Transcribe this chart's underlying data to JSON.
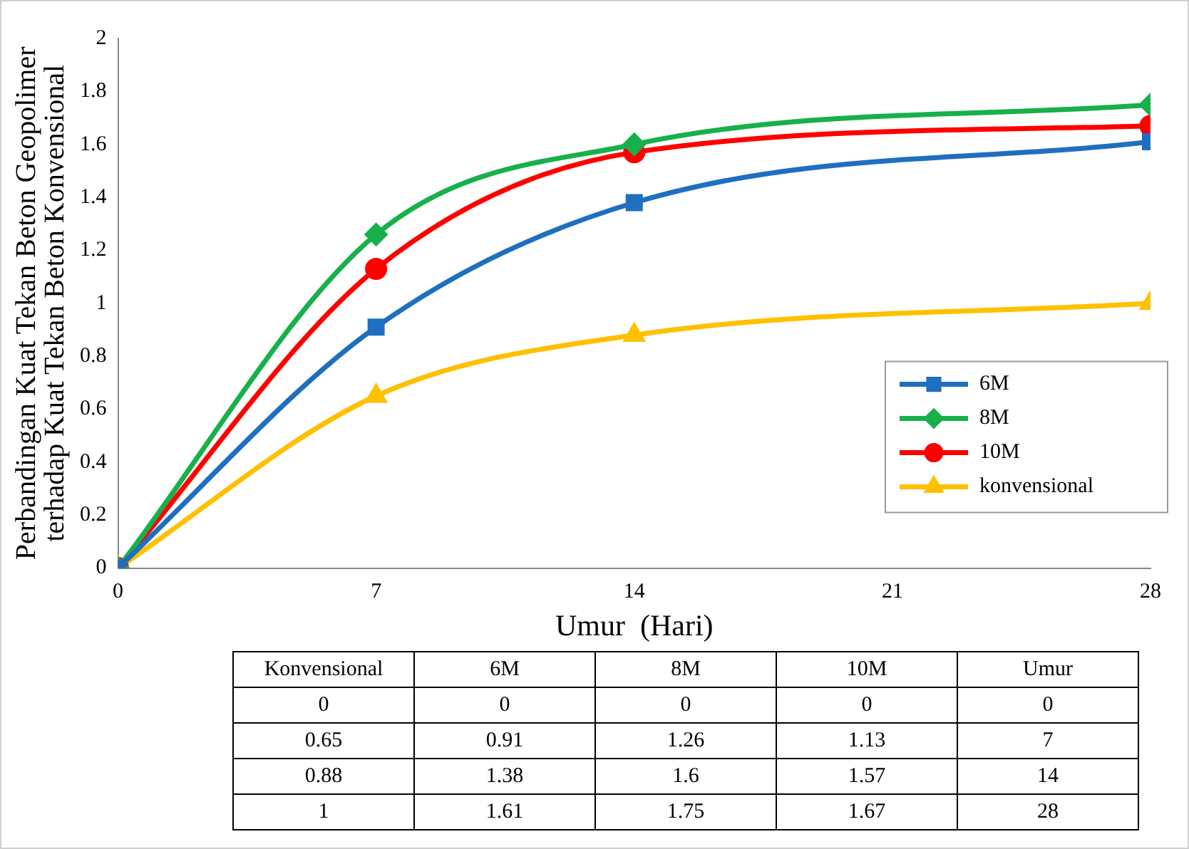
{
  "chart_data": {
    "type": "line",
    "xlabel": "Umur  (Hari)",
    "ylabel": "Perbandingan Kuat Tekan Beton Geopolimer\nterhadap Kuat Tekan Beton Konvensional",
    "x": [
      0,
      7,
      14,
      28
    ],
    "xlim": [
      0,
      28
    ],
    "xticks": [
      0,
      7,
      14,
      21,
      28
    ],
    "ylim": [
      0,
      2
    ],
    "yticks": [
      0,
      0.2,
      0.4,
      0.6,
      0.8,
      1,
      1.2,
      1.4,
      1.6,
      1.8,
      2
    ],
    "series": [
      {
        "name": "6M",
        "color": "#1f6fc0",
        "marker": "square",
        "values": [
          0,
          0.91,
          1.38,
          1.61
        ]
      },
      {
        "name": "8M",
        "color": "#17b04b",
        "marker": "diamond",
        "values": [
          0,
          1.26,
          1.6,
          1.75
        ]
      },
      {
        "name": "10M",
        "color": "#ff0000",
        "marker": "circle",
        "values": [
          0,
          1.13,
          1.57,
          1.67
        ]
      },
      {
        "name": "konvensional",
        "color": "#ffc000",
        "marker": "triangle",
        "values": [
          0,
          0.65,
          0.88,
          1
        ]
      }
    ],
    "annotations": [
      "Konvensional",
      "6M",
      "8M",
      "10M",
      "Umur",
      "0",
      "0",
      "0",
      "0",
      "0",
      "0.65",
      "0.91",
      "1.26",
      "1.13",
      "7",
      "0.88",
      "1.38",
      "1.6",
      "1.57",
      "14",
      "1",
      "1.61",
      "1.75",
      "1.67",
      "28"
    ],
    "grid": false,
    "legend": "right",
    "line_style": "solid"
  }
}
